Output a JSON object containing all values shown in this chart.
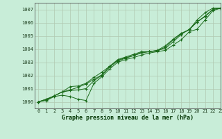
{
  "title": "Graphe pression niveau de la mer (hPa)",
  "background_color": "#c8edd8",
  "grid_color": "#b0c8b0",
  "line_color": "#1a6b1a",
  "xlim": [
    -0.5,
    23
  ],
  "ylim": [
    999.5,
    1007.5
  ],
  "yticks": [
    1000,
    1001,
    1002,
    1003,
    1004,
    1005,
    1006,
    1007
  ],
  "xticks": [
    0,
    1,
    2,
    3,
    4,
    5,
    6,
    7,
    8,
    9,
    10,
    11,
    12,
    13,
    14,
    15,
    16,
    17,
    18,
    19,
    20,
    21,
    22,
    23
  ],
  "series": [
    [
      1000.0,
      1000.1,
      1000.4,
      1000.5,
      1000.4,
      1000.2,
      1000.1,
      1001.4,
      1001.9,
      1002.5,
      1003.0,
      1003.2,
      1003.35,
      1003.55,
      1003.7,
      1003.8,
      1003.9,
      1004.3,
      1004.7,
      1005.3,
      1005.5,
      1006.2,
      1006.9,
      1007.1
    ],
    [
      1000.0,
      1000.2,
      1000.45,
      1000.75,
      1000.9,
      1001.1,
      1001.35,
      1001.7,
      1002.05,
      1002.7,
      1003.15,
      1003.35,
      1003.5,
      1003.7,
      1003.8,
      1003.85,
      1004.15,
      1004.7,
      1005.15,
      1005.45,
      1006.05,
      1006.5,
      1007.0,
      1007.1
    ],
    [
      1000.0,
      1000.2,
      1000.45,
      1000.75,
      1000.85,
      1000.9,
      1001.0,
      1001.6,
      1002.0,
      1002.65,
      1003.1,
      1003.3,
      1003.5,
      1003.75,
      1003.8,
      1003.9,
      1004.05,
      1004.55,
      1005.1,
      1005.5,
      1006.05,
      1006.45,
      1007.0,
      1007.1
    ],
    [
      1000.0,
      1000.15,
      1000.45,
      1000.75,
      1001.15,
      1001.2,
      1001.4,
      1001.85,
      1002.25,
      1002.7,
      1003.2,
      1003.4,
      1003.6,
      1003.8,
      1003.8,
      1003.9,
      1004.25,
      1004.75,
      1005.2,
      1005.45,
      1006.2,
      1006.75,
      1007.1,
      1007.1
    ]
  ]
}
